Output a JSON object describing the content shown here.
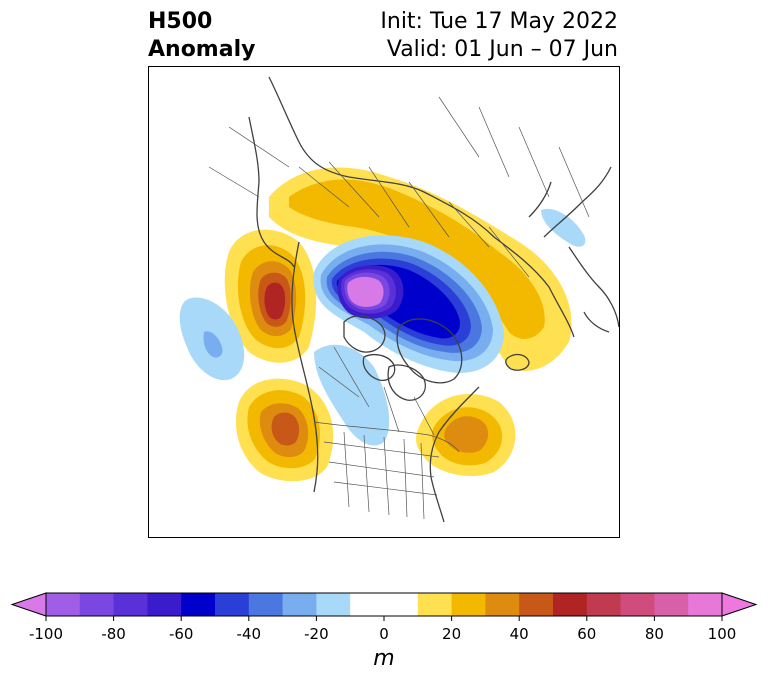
{
  "header": {
    "title_line1": "H500",
    "title_line2": "Anomaly",
    "init_line": "Init: Tue 17 May 2022",
    "valid_line": "Valid: 01 Jun – 07 Jun"
  },
  "colorbar": {
    "unit": "m",
    "ticks": [
      "-100",
      "-80",
      "-60",
      "-40",
      "-20",
      "0",
      "20",
      "40",
      "60",
      "80",
      "100"
    ],
    "levels": [
      -100,
      -90,
      -80,
      -70,
      -60,
      -50,
      -40,
      -30,
      -20,
      -10,
      10,
      20,
      30,
      40,
      50,
      60,
      70,
      80,
      90,
      100
    ],
    "bins": [
      {
        "from": -100,
        "to": -90,
        "color": "#a05ee6"
      },
      {
        "from": -90,
        "to": -80,
        "color": "#7a48e0"
      },
      {
        "from": -80,
        "to": -70,
        "color": "#5a30d8"
      },
      {
        "from": -70,
        "to": -60,
        "color": "#3a1ccc"
      },
      {
        "from": -60,
        "to": -50,
        "color": "#0000cc"
      },
      {
        "from": -50,
        "to": -40,
        "color": "#2a3ed8"
      },
      {
        "from": -40,
        "to": -30,
        "color": "#4a78e0"
      },
      {
        "from": -30,
        "to": -20,
        "color": "#78aef0"
      },
      {
        "from": -20,
        "to": -10,
        "color": "#a9d9f8"
      },
      {
        "from": -10,
        "to": 10,
        "color": "#ffffff"
      },
      {
        "from": 10,
        "to": 20,
        "color": "#ffe050"
      },
      {
        "from": 20,
        "to": 30,
        "color": "#f3b800"
      },
      {
        "from": 30,
        "to": 40,
        "color": "#de8c10"
      },
      {
        "from": 40,
        "to": 50,
        "color": "#c85818"
      },
      {
        "from": 50,
        "to": 60,
        "color": "#b02424"
      },
      {
        "from": 60,
        "to": 70,
        "color": "#c03a50"
      },
      {
        "from": 70,
        "to": 80,
        "color": "#d04c7c"
      },
      {
        "from": 80,
        "to": 90,
        "color": "#d860a8"
      },
      {
        "from": 90,
        "to": 100,
        "color": "#e878d8"
      }
    ],
    "under_color": "#d77ae8",
    "over_color": "#ee78e0"
  },
  "anomalies": [
    {
      "region": "arctic-low",
      "peak": -100
    },
    {
      "region": "baffin-low",
      "peak": -70
    },
    {
      "region": "canada-trough",
      "peak": -20
    },
    {
      "region": "pacific-low",
      "peak": -30
    },
    {
      "region": "east-asia-low",
      "peak": -20
    },
    {
      "region": "alaska-ridge",
      "peak": 60
    },
    {
      "region": "west-us-ridge",
      "peak": 50
    },
    {
      "region": "northwest-atlantic-ridge",
      "peak": 40
    },
    {
      "region": "eurasia-ridge",
      "peak": 30
    }
  ]
}
